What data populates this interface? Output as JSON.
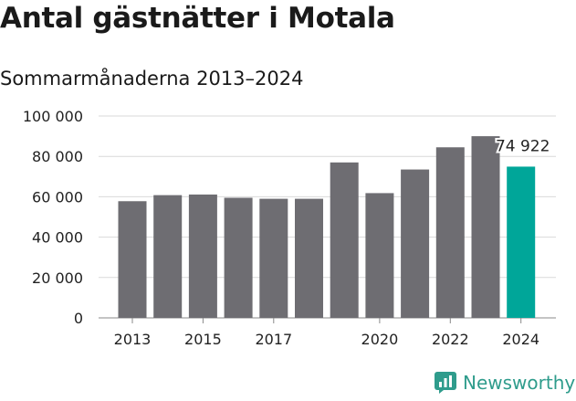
{
  "colors": {
    "bar": "#6e6d72",
    "highlight": "#00a699",
    "grid": "#d9d9d9",
    "brand": "#2f9c8c"
  },
  "brand": {
    "name": "Newsworthy",
    "icon": "bar-chart-logo-icon"
  },
  "chart_data": {
    "type": "bar",
    "title": "Antal gästnätter i Motala",
    "subtitle": "Sommarmånaderna 2013–2024",
    "categories": [
      "2013",
      "2014",
      "2015",
      "2016",
      "2017",
      "2018",
      "2019",
      "2020",
      "2021",
      "2022",
      "2023",
      "2024"
    ],
    "values": [
      57800,
      60800,
      61100,
      59500,
      59000,
      59000,
      77000,
      61800,
      73500,
      84500,
      90000,
      74922
    ],
    "highlight_index": 11,
    "value_label": {
      "index": 11,
      "text": "74 922"
    },
    "xtick_labels": [
      {
        "index": 0,
        "text": "2013"
      },
      {
        "index": 2,
        "text": "2015"
      },
      {
        "index": 4,
        "text": "2017"
      },
      {
        "index": 7,
        "text": "2020"
      },
      {
        "index": 9,
        "text": "2022"
      },
      {
        "index": 11,
        "text": "2024"
      }
    ],
    "ylim": [
      0,
      100000
    ],
    "yticks": [
      {
        "value": 0,
        "label": "0"
      },
      {
        "value": 20000,
        "label": "20 000"
      },
      {
        "value": 40000,
        "label": "40 000"
      },
      {
        "value": 60000,
        "label": "60 000"
      },
      {
        "value": 80000,
        "label": "80 000"
      },
      {
        "value": 100000,
        "label": "100 000"
      }
    ],
    "grid": true,
    "xlabel": "",
    "ylabel": ""
  }
}
